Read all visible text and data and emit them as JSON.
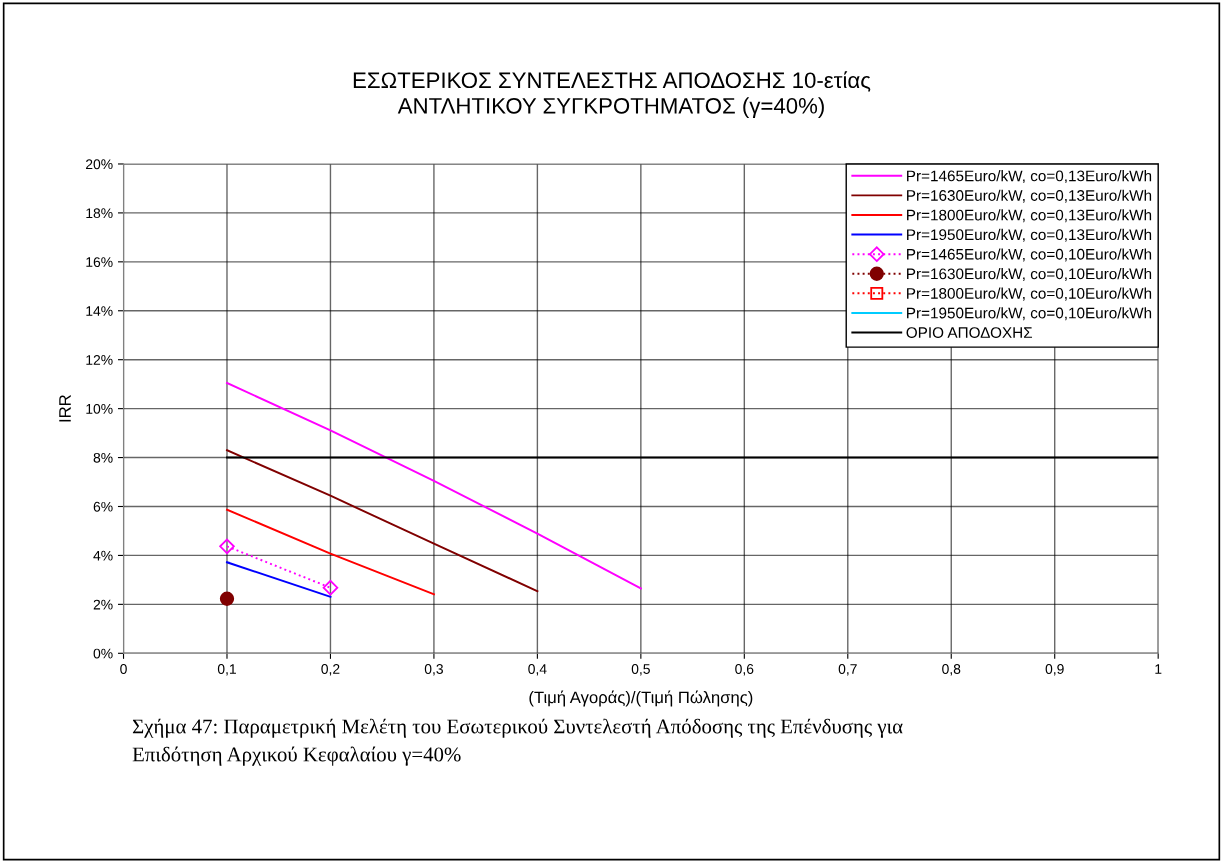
{
  "chart_data": {
    "type": "line",
    "title": "ΕΣΩΤΕΡΙΚΟΣ ΣΥΝΤΕΛΕΣΤΗΣ ΑΠΟΔΟΣΗΣ 10-ετίας\nΑΝΤΛΗΤΙΚΟΥ ΣΥΓΚΡΟΤΗΜΑΤΟΣ (γ=40%)",
    "xlabel": "(Τιμή Αγοράς)/(Τιμή Πώλησης)",
    "ylabel": "IRR",
    "annotations": [
      "Σχήμα 47: Παραμετρική Μελέτη του Εσωτερικού Συντελεστή Απόδοσης της Επένδυσης για\nΕπιδότηση Αρχικού Κεφαλαίου γ=40%"
    ],
    "series": [
      {
        "name": "Pr=1465Euro/kW, co=0,13Euro/kWh",
        "color": "#ff00ff",
        "x": [
          0.1,
          0.2,
          0.3,
          0.4,
          0.5
        ],
        "values": [
          11.05,
          9.11,
          7.05,
          4.89,
          2.65
        ],
        "marker": "none",
        "line_style": "solid"
      },
      {
        "name": "Pr=1630Euro/kW, co=0,13Euro/kWh",
        "color": "#800000",
        "x": [
          0.1,
          0.2,
          0.3,
          0.4
        ],
        "values": [
          8.3,
          6.44,
          4.48,
          2.54
        ],
        "marker": "none",
        "line_style": "solid"
      },
      {
        "name": "Pr=1800Euro/kW, co=0,13Euro/kWh",
        "color": "#ff0000",
        "x": [
          0.1,
          0.2,
          0.3
        ],
        "values": [
          5.87,
          4.07,
          2.41
        ],
        "marker": "none",
        "line_style": "solid"
      },
      {
        "name": "Pr=1950Euro/kW, co=0,13Euro/kWh",
        "color": "#0000ff",
        "x": [
          0.1,
          0.2
        ],
        "values": [
          3.72,
          2.31
        ],
        "marker": "none",
        "line_style": "solid"
      },
      {
        "name": "Pr=1465Euro/kW, co=0,10Euro/kWh",
        "color": "#ff00ff",
        "x": [
          0.1,
          0.2
        ],
        "values": [
          4.37,
          2.68
        ],
        "marker": "diamond",
        "line_style": "dotted"
      },
      {
        "name": "Pr=1630Euro/kW, co=0,10Euro/kWh",
        "color": "#800000",
        "x": [
          0.1
        ],
        "values": [
          2.23
        ],
        "marker": "circle",
        "line_style": "dotted"
      },
      {
        "name": "Pr=1800Euro/kW, co=0,10Euro/kWh",
        "color": "#ff0000",
        "marker": "square",
        "line_style": "dotted"
      },
      {
        "name": "Pr=1950Euro/kW, co=0,10Euro/kWh",
        "color": "#00ccff",
        "marker": "none",
        "line_style": "solid"
      },
      {
        "name": "ΟΡΙΟ ΑΠΟΔΟΧΗΣ",
        "color": "#000000",
        "x": [
          0.1,
          1.0
        ],
        "values": [
          8,
          8
        ],
        "marker": "none",
        "line_style": "solid"
      }
    ],
    "xlim": [
      0,
      1
    ],
    "xticks": [
      0,
      {
        "value": 0.1,
        "label": "0,1"
      },
      {
        "value": 0.2,
        "label": "0,2"
      },
      {
        "value": 0.3,
        "label": "0,3"
      },
      {
        "value": 0.4,
        "label": "0,4"
      },
      {
        "value": 0.5,
        "label": "0,5"
      },
      {
        "value": 0.6,
        "label": "0,6"
      },
      {
        "value": 0.7,
        "label": "0,7"
      },
      {
        "value": 0.8,
        "label": "0,8"
      },
      {
        "value": 0.9,
        "label": "0,9"
      },
      1
    ],
    "ylim": [
      0,
      20
    ],
    "yticks": [
      {
        "value": 0,
        "label": "0%"
      },
      {
        "value": 2,
        "label": "2%"
      },
      {
        "value": 4,
        "label": "4%"
      },
      {
        "value": 6,
        "label": "6%"
      },
      {
        "value": 8,
        "label": "8%"
      },
      {
        "value": 10,
        "label": "10%"
      },
      {
        "value": 12,
        "label": "12%"
      },
      {
        "value": 14,
        "label": "14%"
      },
      {
        "value": 16,
        "label": "16%"
      },
      {
        "value": 18,
        "label": "18%"
      },
      {
        "value": 20,
        "label": "20%"
      }
    ],
    "grid": true,
    "legend": "top right"
  }
}
